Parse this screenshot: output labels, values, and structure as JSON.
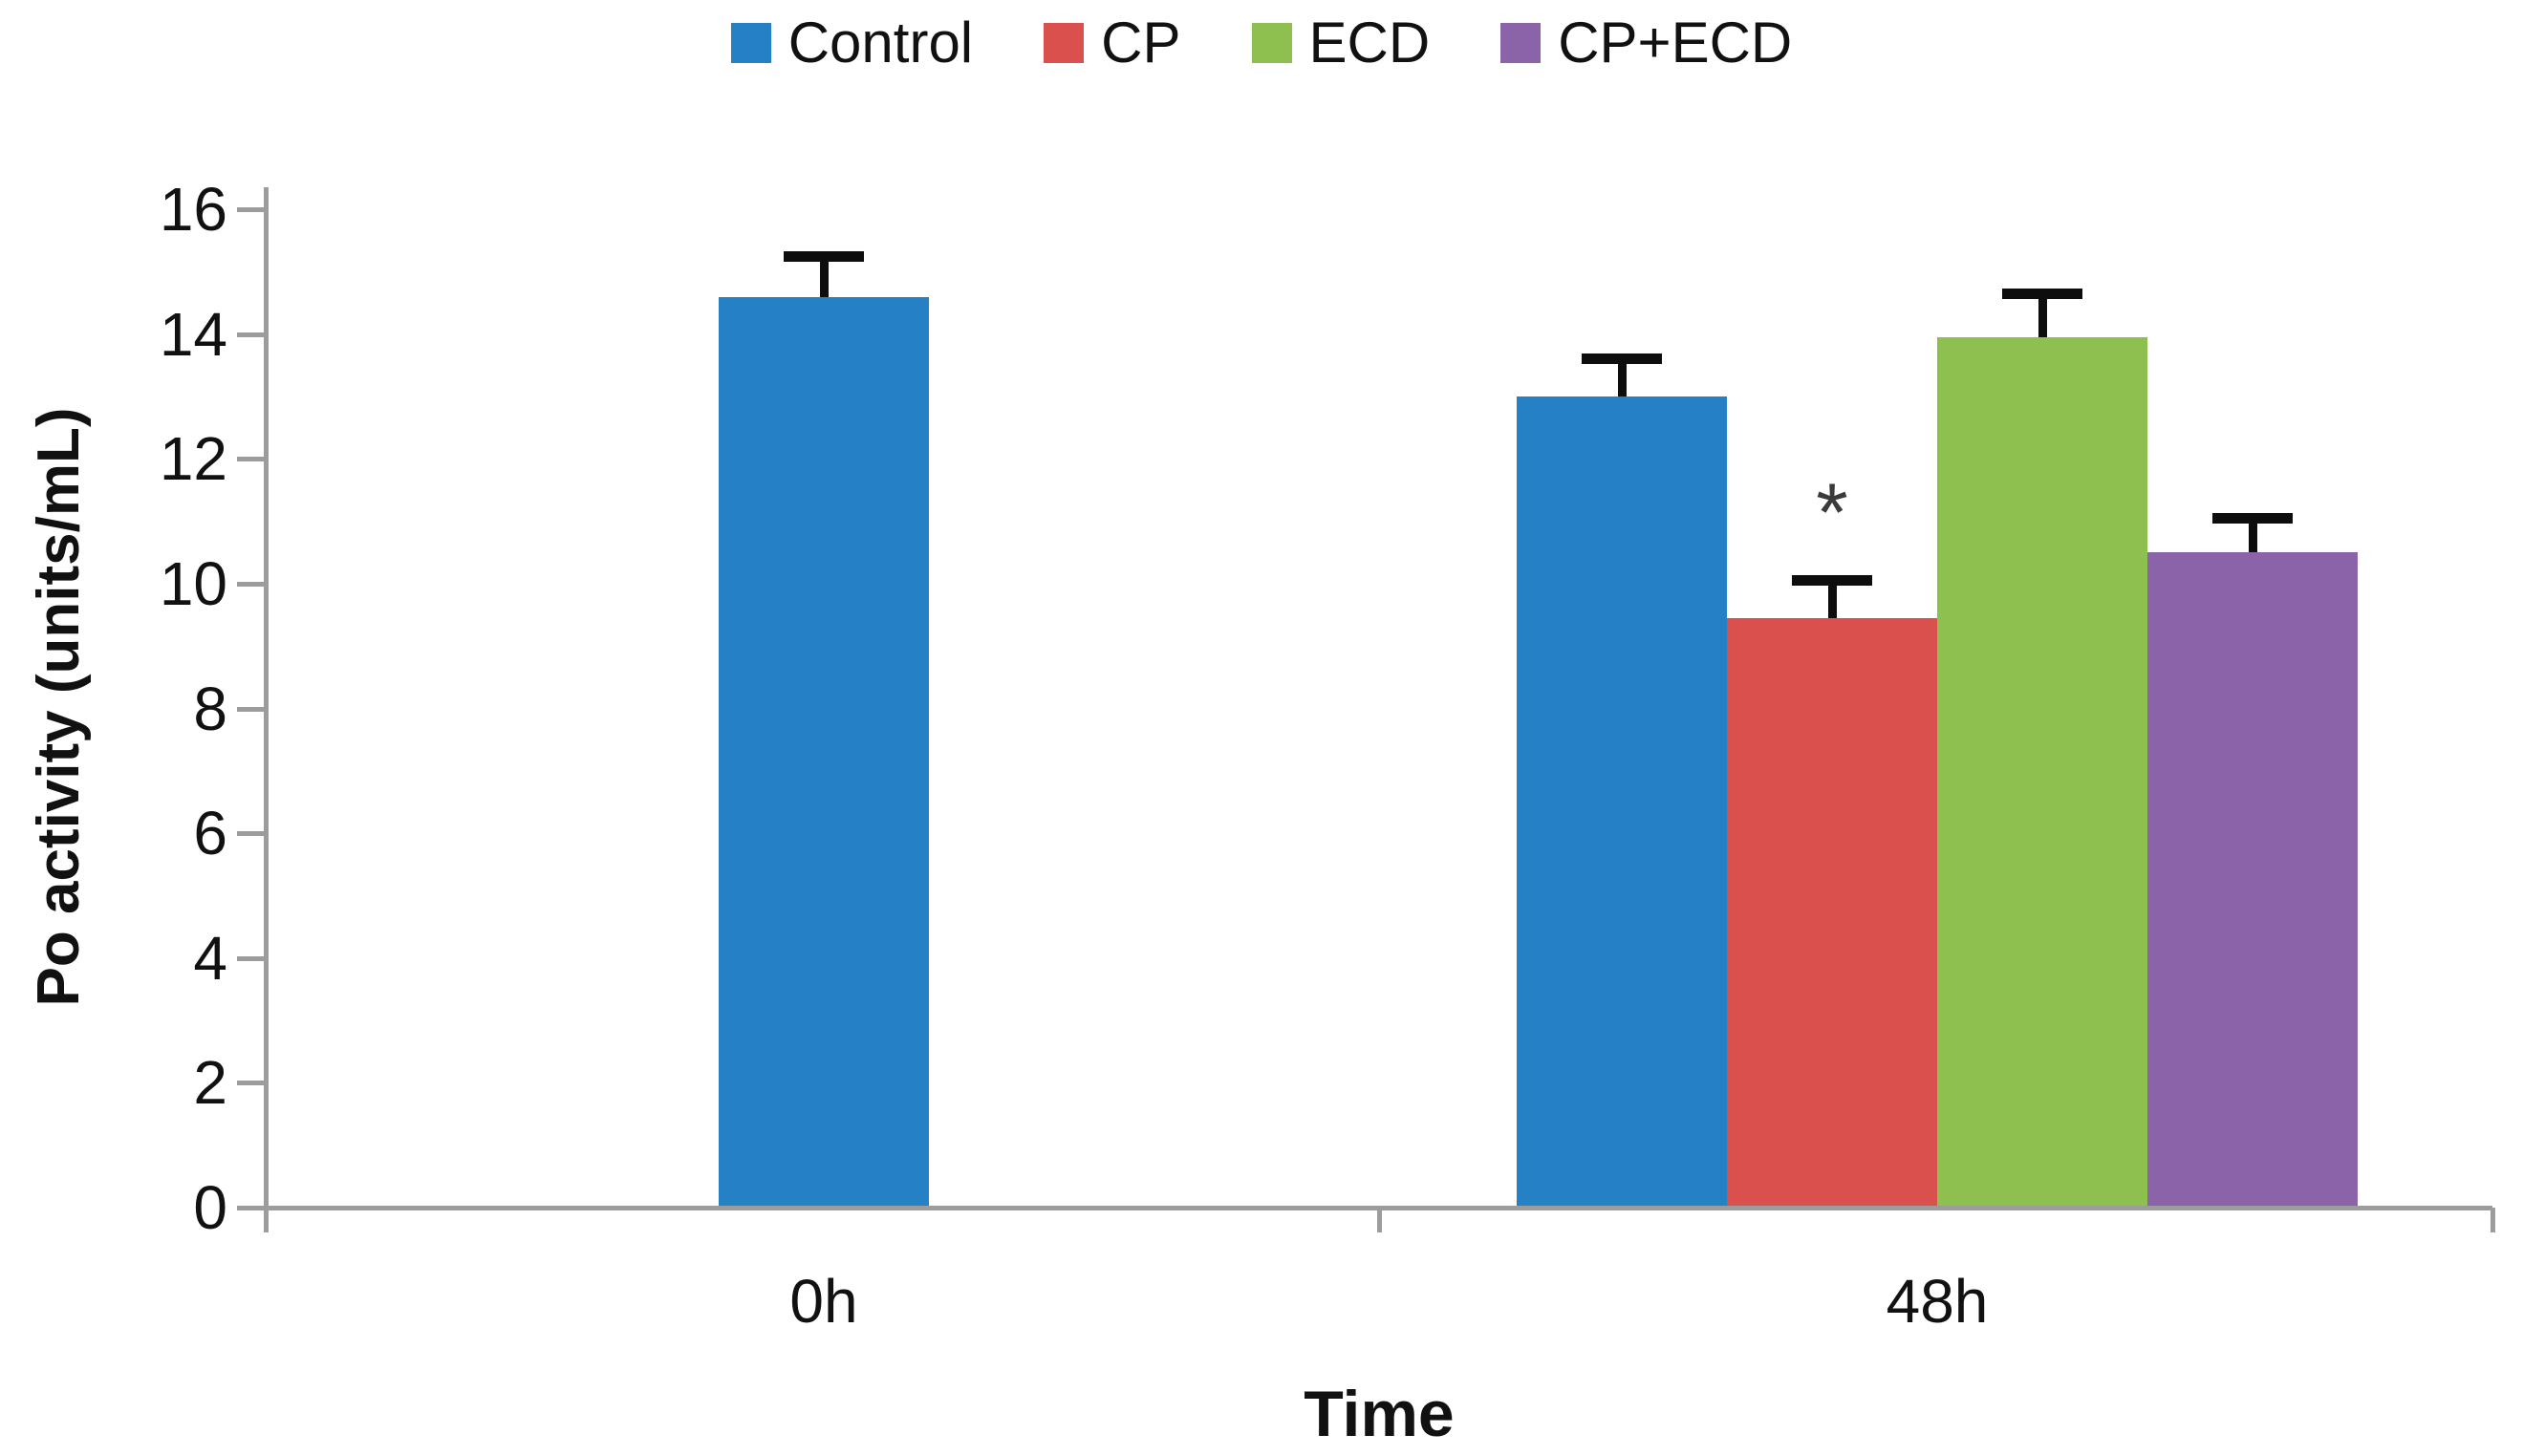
{
  "page": {
    "background": "#ffffff"
  },
  "legend": {
    "position": "top-center",
    "items": [
      {
        "label": "Control",
        "color": "#2581c4"
      },
      {
        "label": "CP",
        "color": "#d9504c"
      },
      {
        "label": "ECD",
        "color": "#8dc04f"
      },
      {
        "label": "CP+ECD",
        "color": "#8a63a8"
      }
    ]
  },
  "chart_data": {
    "type": "bar",
    "title": "",
    "categories": [
      "0h",
      "48h"
    ],
    "series": [
      {
        "name": "Control",
        "color": "#2581c4",
        "values": [
          14.6,
          13.0
        ],
        "errors": [
          0.65,
          0.6
        ]
      },
      {
        "name": "CP",
        "color": "#d9504c",
        "values": [
          null,
          9.45
        ],
        "errors": [
          null,
          0.6
        ]
      },
      {
        "name": "ECD",
        "color": "#8dc04f",
        "values": [
          null,
          13.95
        ],
        "errors": [
          null,
          0.7
        ]
      },
      {
        "name": "CP+ECD",
        "color": "#8a63a8",
        "values": [
          null,
          10.5
        ],
        "errors": [
          null,
          0.55
        ]
      }
    ],
    "annotations": [
      {
        "text": "*",
        "series": "CP",
        "category": "48h"
      }
    ],
    "xlabel": "Time",
    "ylabel": "Po activity (units/mL)",
    "ylim": [
      0,
      16
    ],
    "yticks": [
      0,
      2,
      4,
      6,
      8,
      10,
      12,
      14,
      16
    ],
    "grid": false,
    "legend_position": "top",
    "error_bar_style": "upper only, with caps"
  },
  "colors": {
    "axis": "#9c9c9c",
    "text": "#111111",
    "annotation": "#3a3a3a"
  }
}
